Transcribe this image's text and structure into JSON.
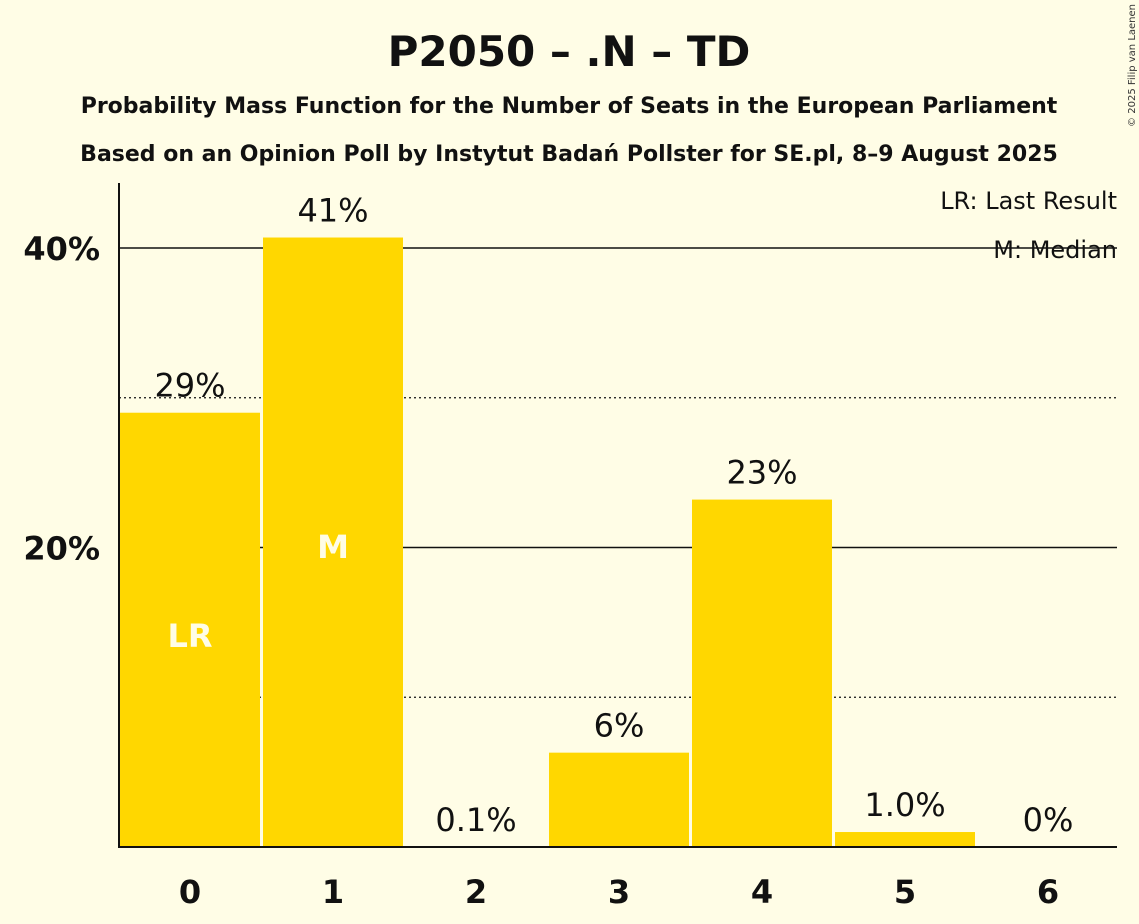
{
  "title": "P2050 – .N – TD",
  "subtitle1": "Probability Mass Function for the Number of Seats in the European Parliament",
  "subtitle2": "Based on an Opinion Poll by Instytut Badań Pollster for SE.pl, 8–9 August 2025",
  "legend": {
    "lr": "LR: Last Result",
    "median": "M: Median"
  },
  "copyright": "© 2025 Filip van Laenen",
  "colors": {
    "bar": "#FFD700",
    "background": "#FFFDE6"
  },
  "chart_data": {
    "type": "bar",
    "categories": [
      "0",
      "1",
      "2",
      "3",
      "4",
      "5",
      "6"
    ],
    "values": [
      29,
      41,
      0.1,
      6,
      23,
      1.0,
      0
    ],
    "exact_values": [
      29.0,
      40.7,
      0.1,
      6.3,
      23.2,
      1.0,
      0
    ],
    "value_labels": [
      "29%",
      "41%",
      "0.1%",
      "6%",
      "23%",
      "1.0%",
      "0%"
    ],
    "in_bar_labels": [
      "LR",
      "M",
      "",
      "",
      "",
      "",
      ""
    ],
    "ylim": [
      0,
      44
    ],
    "y_ticks": [
      {
        "value": 20,
        "label": "20%"
      },
      {
        "value": 40,
        "label": "40%"
      }
    ],
    "minor_gridlines": [
      10,
      30
    ],
    "xlabel": "",
    "ylabel": ""
  }
}
